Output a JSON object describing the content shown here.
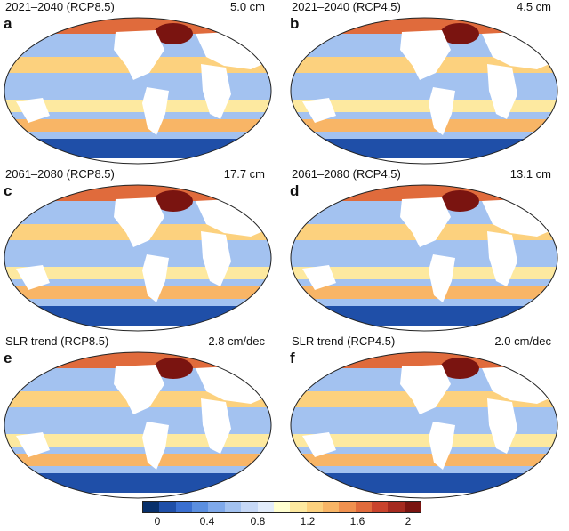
{
  "panels": [
    {
      "letter": "a",
      "title": "2021–2040 (RCP8.5)",
      "value": "5.0 cm"
    },
    {
      "letter": "b",
      "title": "2021–2040 (RCP4.5)",
      "value": "4.5 cm"
    },
    {
      "letter": "c",
      "title": "2061–2080 (RCP8.5)",
      "value": "17.7 cm"
    },
    {
      "letter": "d",
      "title": "2061–2080 (RCP4.5)",
      "value": "13.1 cm"
    },
    {
      "letter": "e",
      "title": "SLR trend (RCP8.5)",
      "value": "2.8 cm/dec"
    },
    {
      "letter": "f",
      "title": "SLR trend (RCP4.5)",
      "value": "2.0 cm/dec"
    }
  ],
  "colorbar": {
    "colors": [
      "#08306b",
      "#1f4fa8",
      "#3a6fd0",
      "#5b8fe0",
      "#7fa9ea",
      "#a3c2f0",
      "#c6d8f6",
      "#e2ecfa",
      "#ffffd0",
      "#fde9a0",
      "#fcd17e",
      "#f8b566",
      "#f0914f",
      "#e06b3c",
      "#c9432c",
      "#a52a1f",
      "#7a1410"
    ],
    "ticks": [
      "0",
      "0.4",
      "0.8",
      "1.2",
      "1.6",
      "2"
    ],
    "tick_values": [
      0,
      0.4,
      0.8,
      1.2,
      1.6,
      2
    ],
    "range": [
      0,
      2
    ]
  },
  "colors": {
    "ocean_base": "#a3c2f0",
    "tropics": "#fcd17e",
    "southern_ocean": "#1f4fa8",
    "north_atlantic_high": "#7a1410",
    "land": "#ffffff"
  }
}
